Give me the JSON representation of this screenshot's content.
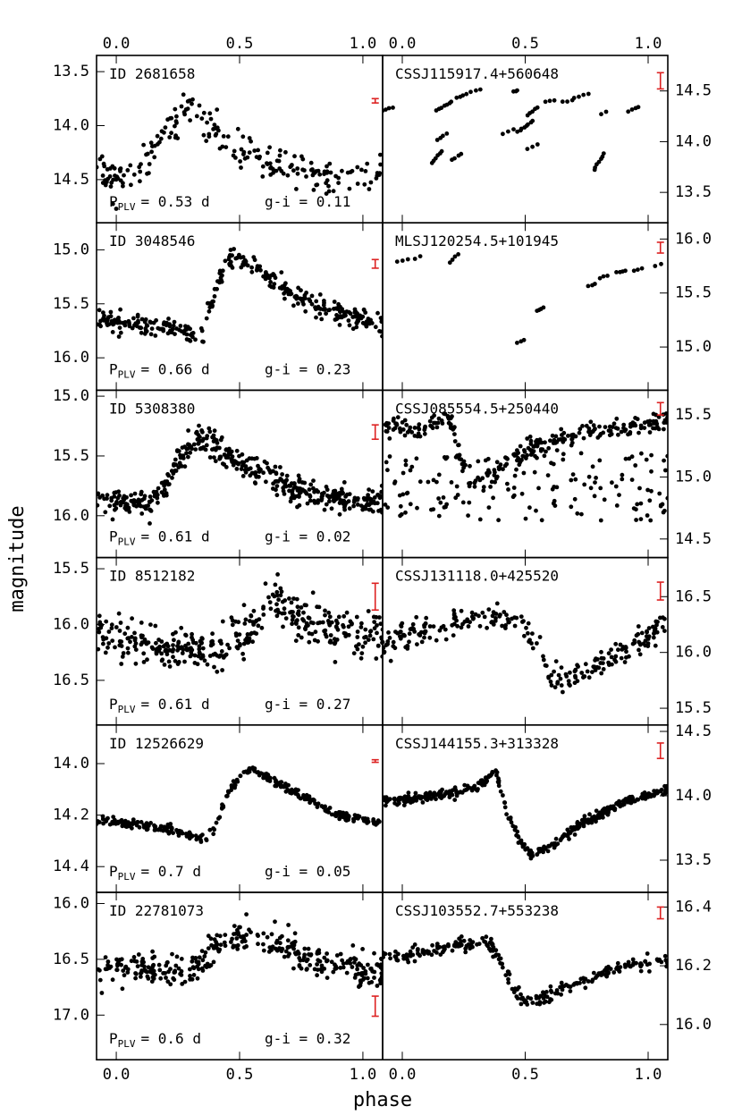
{
  "figure": {
    "xlabel": "phase",
    "ylabel": "magnitude",
    "x_ticks": [
      "0.0",
      "0.5",
      "1.0"
    ],
    "error_bar_color": "#dd2222",
    "point_color": "#000000"
  },
  "chart_data": [
    {
      "type": "scatter",
      "column": "left",
      "title": "ID 2681658",
      "period_label": "P",
      "period_sub": "PLV",
      "period_value": "= 0.53 d",
      "color_label": "g-i = 0.11",
      "xlim": [
        -0.08,
        1.08
      ],
      "ylim": [
        13.35,
        14.9
      ],
      "y_ticks": [
        13.5,
        14.0,
        14.5
      ],
      "y_tick_labels": [
        "13.5",
        "14.0",
        "14.5"
      ],
      "error_bar": {
        "x": 1.05,
        "y": 13.77,
        "err": 0.02
      },
      "keypoints": [
        [
          -0.08,
          14.45
        ],
        [
          0.1,
          14.45
        ],
        [
          0.16,
          14.2
        ],
        [
          0.22,
          14.05
        ],
        [
          0.28,
          13.85
        ],
        [
          0.32,
          13.9
        ],
        [
          0.36,
          14.0
        ],
        [
          0.42,
          14.1
        ],
        [
          0.5,
          14.25
        ],
        [
          0.6,
          14.3
        ],
        [
          0.7,
          14.38
        ],
        [
          0.8,
          14.42
        ],
        [
          0.9,
          14.45
        ],
        [
          1.08,
          14.45
        ]
      ],
      "scatter": 0.09,
      "n_points": 210,
      "seed": 11
    },
    {
      "type": "scatter",
      "column": "right",
      "title": "CSSJ115917.4+560648",
      "xlim": [
        -0.08,
        1.08
      ],
      "ylim": [
        14.85,
        13.2
      ],
      "y_ticks": [
        13.5,
        14.0,
        14.5
      ],
      "y_tick_labels": [
        "13.5",
        "14.0",
        "14.5"
      ],
      "error_bar": {
        "x": 1.05,
        "y": 14.6,
        "err": 0.08
      },
      "clusters": [
        [
          -0.06,
          14.32,
          0.02,
          0.02,
          4
        ],
        [
          0.14,
          13.85,
          0.02,
          0.06,
          6
        ],
        [
          0.16,
          14.05,
          0.02,
          0.03,
          4
        ],
        [
          0.17,
          14.35,
          0.03,
          0.04,
          7
        ],
        [
          0.22,
          13.85,
          0.02,
          0.03,
          4
        ],
        [
          0.24,
          14.45,
          0.02,
          0.02,
          4
        ],
        [
          0.3,
          14.5,
          0.02,
          0.01,
          3
        ],
        [
          0.43,
          14.1,
          0.02,
          0.02,
          3
        ],
        [
          0.46,
          14.5,
          0.01,
          0.01,
          3
        ],
        [
          0.5,
          14.15,
          0.03,
          0.05,
          8
        ],
        [
          0.53,
          14.3,
          0.02,
          0.04,
          5
        ],
        [
          0.53,
          13.95,
          0.02,
          0.02,
          3
        ],
        [
          0.6,
          14.4,
          0.02,
          0.01,
          3
        ],
        [
          0.67,
          14.4,
          0.02,
          0.01,
          3
        ],
        [
          0.73,
          14.45,
          0.03,
          0.02,
          4
        ],
        [
          0.8,
          13.8,
          0.02,
          0.08,
          7
        ],
        [
          0.82,
          14.28,
          0.01,
          0.01,
          2
        ],
        [
          0.94,
          14.32,
          0.02,
          0.02,
          4
        ]
      ]
    },
    {
      "type": "scatter",
      "column": "left",
      "title": "ID 3048546",
      "period_label": "P",
      "period_sub": "PLV",
      "period_value": "= 0.66 d",
      "color_label": "g-i = 0.23",
      "xlim": [
        -0.08,
        1.08
      ],
      "ylim": [
        14.75,
        16.3
      ],
      "y_ticks": [
        15.0,
        15.5,
        16.0
      ],
      "y_tick_labels": [
        "15.0",
        "15.5",
        "16.0"
      ],
      "error_bar": {
        "x": 1.05,
        "y": 15.13,
        "err": 0.04
      },
      "keypoints": [
        [
          -0.08,
          15.65
        ],
        [
          0.1,
          15.7
        ],
        [
          0.25,
          15.75
        ],
        [
          0.32,
          15.8
        ],
        [
          0.36,
          15.75
        ],
        [
          0.4,
          15.4
        ],
        [
          0.44,
          15.15
        ],
        [
          0.48,
          15.05
        ],
        [
          0.55,
          15.15
        ],
        [
          0.65,
          15.3
        ],
        [
          0.75,
          15.45
        ],
        [
          0.85,
          15.55
        ],
        [
          1.0,
          15.65
        ],
        [
          1.08,
          15.7
        ]
      ],
      "scatter": 0.045,
      "n_points": 330,
      "seed": 23
    },
    {
      "type": "scatter",
      "column": "right",
      "title": "MLSJ120254.5+101945",
      "xlim": [
        -0.08,
        1.08
      ],
      "ylim": [
        16.15,
        14.6
      ],
      "y_ticks": [
        15.0,
        15.5,
        16.0
      ],
      "y_tick_labels": [
        "15.0",
        "15.5",
        "16.0"
      ],
      "error_bar": {
        "x": 1.05,
        "y": 15.92,
        "err": 0.05
      },
      "clusters": [
        [
          0.0,
          15.8,
          0.02,
          0.01,
          3
        ],
        [
          0.06,
          15.83,
          0.01,
          0.01,
          2
        ],
        [
          0.21,
          15.82,
          0.015,
          0.04,
          4
        ],
        [
          0.48,
          15.05,
          0.015,
          0.01,
          3
        ],
        [
          0.56,
          15.35,
          0.015,
          0.02,
          4
        ],
        [
          0.77,
          15.57,
          0.015,
          0.01,
          3
        ],
        [
          0.82,
          15.65,
          0.015,
          0.01,
          3
        ],
        [
          0.89,
          15.7,
          0.02,
          0.01,
          4
        ],
        [
          0.96,
          15.72,
          0.015,
          0.01,
          3
        ],
        [
          1.04,
          15.76,
          0.01,
          0.01,
          2
        ]
      ]
    },
    {
      "type": "scatter",
      "column": "left",
      "title": "ID 5308380",
      "period_label": "P",
      "period_sub": "PLV",
      "period_value": "= 0.61 d",
      "color_label": "g-i = 0.02",
      "xlim": [
        -0.08,
        1.08
      ],
      "ylim": [
        14.95,
        16.35
      ],
      "y_ticks": [
        15.0,
        15.5,
        16.0
      ],
      "y_tick_labels": [
        "15.0",
        "15.5",
        "16.0"
      ],
      "error_bar": {
        "x": 1.05,
        "y": 15.3,
        "err": 0.06
      },
      "keypoints": [
        [
          -0.08,
          15.85
        ],
        [
          0.15,
          15.9
        ],
        [
          0.2,
          15.75
        ],
        [
          0.25,
          15.55
        ],
        [
          0.3,
          15.4
        ],
        [
          0.35,
          15.35
        ],
        [
          0.42,
          15.45
        ],
        [
          0.5,
          15.55
        ],
        [
          0.6,
          15.65
        ],
        [
          0.7,
          15.75
        ],
        [
          0.8,
          15.82
        ],
        [
          0.9,
          15.85
        ],
        [
          1.08,
          15.88
        ]
      ],
      "scatter": 0.055,
      "n_points": 430,
      "seed": 37
    },
    {
      "type": "scatter",
      "column": "right",
      "title": "CSSJ085554.5+250440",
      "xlim": [
        -0.08,
        1.08
      ],
      "ylim": [
        15.7,
        14.35
      ],
      "y_ticks": [
        14.5,
        15.0,
        15.5
      ],
      "y_tick_labels": [
        "14.5",
        "15.0",
        "15.5"
      ],
      "error_bar": {
        "x": 1.05,
        "y": 15.55,
        "err": 0.05
      },
      "keypoints": [
        [
          -0.08,
          15.42
        ],
        [
          0.05,
          15.38
        ],
        [
          0.12,
          15.42
        ],
        [
          0.18,
          15.5
        ],
        [
          0.2,
          15.45
        ],
        [
          0.24,
          15.1
        ],
        [
          0.28,
          14.9
        ],
        [
          0.34,
          15.0
        ],
        [
          0.45,
          15.15
        ],
        [
          0.55,
          15.25
        ],
        [
          0.65,
          15.3
        ],
        [
          0.75,
          15.35
        ],
        [
          0.9,
          15.4
        ],
        [
          1.08,
          15.45
        ]
      ],
      "scatter": 0.04,
      "n_points": 260,
      "seed": 41,
      "extra": {
        "x": [
          -0.08,
          1.08
        ],
        "y": [
          14.65,
          15.2
        ],
        "n": 150
      }
    },
    {
      "type": "scatter",
      "column": "left",
      "title": "ID 8512182",
      "period_label": "P",
      "period_sub": "PLV",
      "period_value": "= 0.61 d",
      "color_label": "g-i = 0.27",
      "xlim": [
        -0.08,
        1.08
      ],
      "ylim": [
        15.4,
        16.9
      ],
      "y_ticks": [
        15.5,
        16.0,
        16.5
      ],
      "y_tick_labels": [
        "15.5",
        "16.0",
        "16.5"
      ],
      "error_bar": {
        "x": 1.05,
        "y": 15.75,
        "err": 0.12
      },
      "keypoints": [
        [
          -0.08,
          16.1
        ],
        [
          0.2,
          16.2
        ],
        [
          0.4,
          16.25
        ],
        [
          0.5,
          16.1
        ],
        [
          0.55,
          16.0
        ],
        [
          0.6,
          15.85
        ],
        [
          0.68,
          15.8
        ],
        [
          0.75,
          15.95
        ],
        [
          0.85,
          16.05
        ],
        [
          1.0,
          16.1
        ],
        [
          1.08,
          16.1
        ]
      ],
      "scatter": 0.1,
      "n_points": 380,
      "seed": 53
    },
    {
      "type": "scatter",
      "column": "right",
      "title": "CSSJ131118.0+425520",
      "xlim": [
        -0.08,
        1.08
      ],
      "ylim": [
        16.85,
        15.35
      ],
      "y_ticks": [
        15.5,
        16.0,
        16.5
      ],
      "y_tick_labels": [
        "15.5",
        "16.0",
        "16.5"
      ],
      "error_bar": {
        "x": 1.05,
        "y": 16.55,
        "err": 0.08
      },
      "keypoints": [
        [
          -0.07,
          16.05
        ],
        [
          0.0,
          16.15
        ],
        [
          0.1,
          16.22
        ],
        [
          0.2,
          16.25
        ],
        [
          0.3,
          16.3
        ],
        [
          0.4,
          16.3
        ],
        [
          0.5,
          16.25
        ],
        [
          0.55,
          16.05
        ],
        [
          0.6,
          15.8
        ],
        [
          0.65,
          15.75
        ],
        [
          0.72,
          15.8
        ],
        [
          0.8,
          15.9
        ],
        [
          0.9,
          16.0
        ],
        [
          1.0,
          16.15
        ],
        [
          1.08,
          16.25
        ]
      ],
      "scatter": 0.055,
      "n_points": 250,
      "seed": 67
    },
    {
      "type": "scatter",
      "column": "left",
      "title": "ID 12526629",
      "period_label": "P",
      "period_sub": "PLV",
      "period_value": "= 0.7 d",
      "color_label": "g-i = 0.05",
      "xlim": [
        -0.08,
        1.08
      ],
      "ylim": [
        13.85,
        14.5
      ],
      "y_ticks": [
        14.0,
        14.2,
        14.4
      ],
      "y_tick_labels": [
        "14.0",
        "14.2",
        "14.4"
      ],
      "error_bar": {
        "x": 1.05,
        "y": 13.99,
        "err": 0.005
      },
      "keypoints": [
        [
          -0.08,
          14.22
        ],
        [
          0.1,
          14.24
        ],
        [
          0.25,
          14.26
        ],
        [
          0.3,
          14.28
        ],
        [
          0.36,
          14.3
        ],
        [
          0.4,
          14.25
        ],
        [
          0.45,
          14.12
        ],
        [
          0.5,
          14.05
        ],
        [
          0.55,
          14.02
        ],
        [
          0.6,
          14.05
        ],
        [
          0.7,
          14.1
        ],
        [
          0.8,
          14.15
        ],
        [
          0.9,
          14.2
        ],
        [
          1.08,
          14.23
        ]
      ],
      "scatter": 0.008,
      "n_points": 300,
      "seed": 71
    },
    {
      "type": "scatter",
      "column": "right",
      "title": "CSSJ144155.3+313328",
      "xlim": [
        -0.08,
        1.08
      ],
      "ylim": [
        14.55,
        13.25
      ],
      "y_ticks": [
        13.5,
        14.0,
        14.5
      ],
      "y_tick_labels": [
        "13.5",
        "14.0",
        "14.5"
      ],
      "error_bar": {
        "x": 1.05,
        "y": 14.35,
        "err": 0.06
      },
      "keypoints": [
        [
          -0.08,
          13.95
        ],
        [
          0.1,
          14.0
        ],
        [
          0.3,
          14.05
        ],
        [
          0.35,
          14.15
        ],
        [
          0.38,
          14.2
        ],
        [
          0.42,
          13.9
        ],
        [
          0.48,
          13.65
        ],
        [
          0.52,
          13.55
        ],
        [
          0.6,
          13.6
        ],
        [
          0.7,
          13.75
        ],
        [
          0.8,
          13.85
        ],
        [
          0.9,
          13.95
        ],
        [
          1.08,
          14.05
        ]
      ],
      "scatter": 0.018,
      "n_points": 380,
      "seed": 83
    },
    {
      "type": "scatter",
      "column": "left",
      "title": "ID 22781073",
      "period_label": "P",
      "period_sub": "PLV",
      "period_value": "= 0.6 d",
      "color_label": "g-i = 0.32",
      "xlim": [
        -0.08,
        1.08
      ],
      "ylim": [
        15.9,
        17.4
      ],
      "y_ticks": [
        16.0,
        16.5,
        17.0
      ],
      "y_tick_labels": [
        "16.0",
        "16.5",
        "17.0"
      ],
      "error_bar": {
        "x": 1.05,
        "y": 16.92,
        "err": 0.09
      },
      "keypoints": [
        [
          -0.08,
          16.55
        ],
        [
          0.1,
          16.6
        ],
        [
          0.3,
          16.6
        ],
        [
          0.4,
          16.4
        ],
        [
          0.5,
          16.25
        ],
        [
          0.6,
          16.3
        ],
        [
          0.7,
          16.4
        ],
        [
          0.8,
          16.5
        ],
        [
          0.9,
          16.55
        ],
        [
          1.08,
          16.6
        ]
      ],
      "scatter": 0.08,
      "n_points": 330,
      "seed": 97
    },
    {
      "type": "scatter",
      "column": "right",
      "title": "CSSJ103552.7+553238",
      "xlim": [
        -0.08,
        1.08
      ],
      "ylim": [
        16.45,
        15.88
      ],
      "y_ticks": [
        16.0,
        16.2,
        16.4
      ],
      "y_tick_labels": [
        "16.0",
        "16.2",
        "16.4"
      ],
      "error_bar": {
        "x": 1.05,
        "y": 16.38,
        "err": 0.02
      },
      "keypoints": [
        [
          -0.07,
          16.23
        ],
        [
          0.1,
          16.25
        ],
        [
          0.25,
          16.27
        ],
        [
          0.35,
          16.28
        ],
        [
          0.4,
          16.22
        ],
        [
          0.45,
          16.12
        ],
        [
          0.52,
          16.07
        ],
        [
          0.6,
          16.1
        ],
        [
          0.7,
          16.14
        ],
        [
          0.8,
          16.17
        ],
        [
          0.9,
          16.2
        ],
        [
          1.08,
          16.22
        ]
      ],
      "scatter": 0.012,
      "n_points": 250,
      "seed": 101
    }
  ]
}
